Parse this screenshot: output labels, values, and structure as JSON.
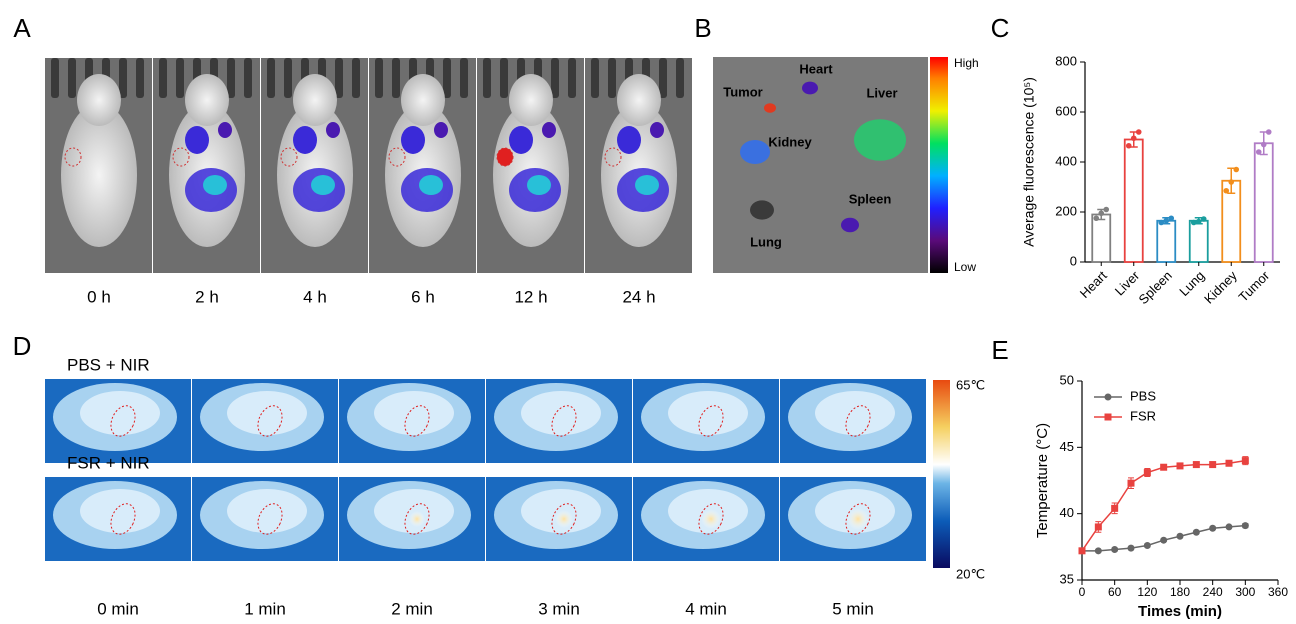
{
  "panel_labels": [
    "A",
    "B",
    "C",
    "D",
    "E"
  ],
  "panel_a": {
    "time_labels": [
      "0 h",
      "2 h",
      "4 h",
      "6 h",
      "12 h",
      "24 h"
    ]
  },
  "panel_b": {
    "organ_labels": [
      "Tumor",
      "Heart",
      "Liver",
      "Kidney",
      "Spleen",
      "Lung"
    ],
    "scale_high": "High",
    "scale_low": "Low"
  },
  "panel_d": {
    "row_labels": [
      "PBS + NIR",
      "FSR + NIR"
    ],
    "time_labels": [
      "0 min",
      "1 min",
      "2 min",
      "3 min",
      "4 min",
      "5 min"
    ],
    "scale_high": "65℃",
    "scale_low": "20℃"
  },
  "chart_data": [
    {
      "type": "bar",
      "y_label": "Average fluorescence (10⁵)",
      "categories": [
        "Heart",
        "Liver",
        "Spleen",
        "Lung",
        "Kidney",
        "Tumor"
      ],
      "values": [
        190,
        490,
        165,
        165,
        325,
        475
      ],
      "errors": [
        20,
        30,
        12,
        12,
        50,
        45
      ],
      "points": [
        [
          175,
          195,
          210
        ],
        [
          465,
          495,
          520
        ],
        [
          158,
          165,
          175
        ],
        [
          158,
          162,
          172
        ],
        [
          285,
          320,
          370
        ],
        [
          440,
          470,
          520
        ]
      ],
      "colors": [
        "#808080",
        "#e8423f",
        "#2b8cc4",
        "#1a9e9e",
        "#f28e1c",
        "#b07cc6"
      ],
      "ylim": [
        0,
        800
      ],
      "yticks": [
        0,
        200,
        400,
        600,
        800
      ]
    },
    {
      "type": "line",
      "x_label": "Times (min)",
      "y_label": "Temperature (°C)",
      "x": [
        0,
        30,
        60,
        90,
        120,
        150,
        180,
        210,
        240,
        270,
        300
      ],
      "series": [
        {
          "name": "PBS",
          "color": "#666666",
          "marker": "circle",
          "values": [
            37.2,
            37.2,
            37.3,
            37.4,
            37.6,
            38.0,
            38.3,
            38.6,
            38.9,
            39.0,
            39.1
          ],
          "errors": [
            0.1,
            0.1,
            0.1,
            0.1,
            0.1,
            0.1,
            0.1,
            0.1,
            0.1,
            0.1,
            0.15
          ]
        },
        {
          "name": "FSR",
          "color": "#e8423f",
          "marker": "square",
          "values": [
            37.2,
            39.0,
            40.4,
            42.3,
            43.1,
            43.5,
            43.6,
            43.7,
            43.7,
            43.8,
            44.0
          ],
          "errors": [
            0.1,
            0.4,
            0.4,
            0.4,
            0.3,
            0.2,
            0.2,
            0.2,
            0.2,
            0.2,
            0.3
          ]
        }
      ],
      "xlim": [
        0,
        360
      ],
      "xticks": [
        0,
        60,
        120,
        180,
        240,
        300,
        360
      ],
      "ylim": [
        35,
        50
      ],
      "yticks": [
        35,
        40,
        45,
        50
      ],
      "legend": "upper left"
    }
  ]
}
